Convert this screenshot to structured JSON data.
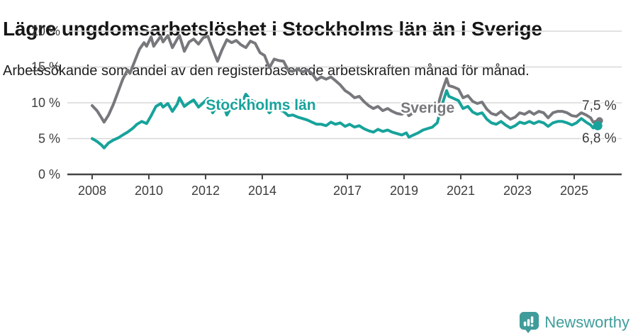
{
  "header": {
    "title": "Lägre ungdomsarbetslöshet i Stockholms län än i Sverige",
    "subtitle": "Arbetssökande som andel av den registerbaserade arbetskraften månad för månad."
  },
  "footer": {
    "brand": "Newsworthy",
    "logo_icon": "bar-chart-speech-bubble-icon"
  },
  "colors": {
    "stockholm_teal": "#17A39B",
    "sverige_gray": "#77787C",
    "axis": "#454545",
    "grid": "#d8d8d8",
    "tick_text": "#3d3d3d",
    "brand_teal": "#3F9D9B"
  },
  "chart_data": {
    "type": "line",
    "title": "Lägre ungdomsarbetslöshet i Stockholms län än i Sverige",
    "subtitle": "Arbetssökande som andel av den registerbaserade arbetskraften månad för månad.",
    "unit": "%",
    "xlim": [
      2007.8,
      2026.3
    ],
    "ylim": [
      0,
      21
    ],
    "grid": "horizontal",
    "legend_position": "inline-labels",
    "y_ticks": [
      0,
      5,
      10,
      15,
      20
    ],
    "y_tick_labels": [
      "0 %",
      "5 %",
      "10 %",
      "15 %",
      "20 %"
    ],
    "x_ticks": [
      2008,
      2010,
      2012,
      2014,
      2017,
      2019,
      2021,
      2023,
      2025
    ],
    "x_tick_labels": [
      "2008",
      "2010",
      "2012",
      "2014",
      "2017",
      "2019",
      "2021",
      "2023",
      "2025"
    ],
    "series": [
      {
        "name": "Sverige",
        "color": "#77787C",
        "end_label": "7,5 %",
        "end_value": 7.5,
        "label_anchor": [
          2019.83,
          9.3
        ],
        "points": [
          [
            2008.0,
            9.6
          ],
          [
            2008.17,
            8.9
          ],
          [
            2008.33,
            7.9
          ],
          [
            2008.42,
            7.3
          ],
          [
            2008.58,
            8.3
          ],
          [
            2008.75,
            9.8
          ],
          [
            2008.92,
            11.6
          ],
          [
            2009.08,
            13.3
          ],
          [
            2009.25,
            14.6
          ],
          [
            2009.33,
            14.1
          ],
          [
            2009.5,
            15.8
          ],
          [
            2009.67,
            17.5
          ],
          [
            2009.83,
            18.4
          ],
          [
            2009.92,
            17.9
          ],
          [
            2010.08,
            19.2
          ],
          [
            2010.17,
            17.9
          ],
          [
            2010.33,
            18.8
          ],
          [
            2010.42,
            19.3
          ],
          [
            2010.5,
            18.5
          ],
          [
            2010.67,
            19.4
          ],
          [
            2010.83,
            17.7
          ],
          [
            2011.0,
            18.9
          ],
          [
            2011.08,
            19.4
          ],
          [
            2011.25,
            17.2
          ],
          [
            2011.42,
            18.5
          ],
          [
            2011.58,
            18.9
          ],
          [
            2011.75,
            18.2
          ],
          [
            2011.92,
            19.1
          ],
          [
            2012.08,
            19.3
          ],
          [
            2012.25,
            17.5
          ],
          [
            2012.42,
            15.8
          ],
          [
            2012.58,
            17.4
          ],
          [
            2012.75,
            18.8
          ],
          [
            2012.92,
            18.4
          ],
          [
            2013.08,
            18.7
          ],
          [
            2013.25,
            18.1
          ],
          [
            2013.42,
            17.7
          ],
          [
            2013.58,
            18.6
          ],
          [
            2013.75,
            18.3
          ],
          [
            2013.92,
            17.0
          ],
          [
            2014.08,
            16.6
          ],
          [
            2014.25,
            14.9
          ],
          [
            2014.42,
            16.1
          ],
          [
            2014.58,
            15.9
          ],
          [
            2014.75,
            15.8
          ],
          [
            2014.92,
            14.5
          ],
          [
            2015.08,
            14.4
          ],
          [
            2015.25,
            14.7
          ],
          [
            2015.42,
            14.3
          ],
          [
            2015.58,
            14.6
          ],
          [
            2015.75,
            14.1
          ],
          [
            2015.92,
            13.2
          ],
          [
            2016.08,
            13.6
          ],
          [
            2016.25,
            13.3
          ],
          [
            2016.42,
            13.6
          ],
          [
            2016.58,
            13.1
          ],
          [
            2016.75,
            12.5
          ],
          [
            2016.92,
            11.7
          ],
          [
            2017.08,
            11.3
          ],
          [
            2017.25,
            10.7
          ],
          [
            2017.42,
            10.9
          ],
          [
            2017.58,
            10.2
          ],
          [
            2017.75,
            9.6
          ],
          [
            2017.92,
            9.2
          ],
          [
            2018.08,
            9.5
          ],
          [
            2018.25,
            8.9
          ],
          [
            2018.42,
            9.2
          ],
          [
            2018.58,
            8.8
          ],
          [
            2018.75,
            8.5
          ],
          [
            2018.92,
            8.4
          ],
          [
            2019.08,
            8.8
          ],
          [
            2019.17,
            8.2
          ],
          [
            2019.33,
            8.6
          ],
          [
            2019.5,
            9.0
          ],
          [
            2019.67,
            9.3
          ],
          [
            2019.83,
            8.8
          ],
          [
            2020.0,
            8.7
          ],
          [
            2020.17,
            9.3
          ],
          [
            2020.33,
            11.5
          ],
          [
            2020.5,
            13.4
          ],
          [
            2020.58,
            12.4
          ],
          [
            2020.75,
            12.2
          ],
          [
            2020.92,
            11.9
          ],
          [
            2021.08,
            10.7
          ],
          [
            2021.25,
            11.0
          ],
          [
            2021.42,
            10.2
          ],
          [
            2021.58,
            9.9
          ],
          [
            2021.75,
            10.1
          ],
          [
            2021.92,
            9.1
          ],
          [
            2022.08,
            8.5
          ],
          [
            2022.25,
            8.3
          ],
          [
            2022.42,
            8.8
          ],
          [
            2022.58,
            8.2
          ],
          [
            2022.75,
            7.7
          ],
          [
            2022.92,
            8.0
          ],
          [
            2023.08,
            8.6
          ],
          [
            2023.25,
            8.4
          ],
          [
            2023.42,
            8.8
          ],
          [
            2023.58,
            8.4
          ],
          [
            2023.75,
            8.8
          ],
          [
            2023.92,
            8.6
          ],
          [
            2024.08,
            7.9
          ],
          [
            2024.25,
            8.6
          ],
          [
            2024.42,
            8.8
          ],
          [
            2024.58,
            8.8
          ],
          [
            2024.75,
            8.6
          ],
          [
            2024.92,
            8.2
          ],
          [
            2025.08,
            8.1
          ],
          [
            2025.25,
            8.6
          ],
          [
            2025.42,
            8.3
          ],
          [
            2025.58,
            7.9
          ],
          [
            2025.67,
            7.3
          ],
          [
            2025.83,
            7.5
          ]
        ]
      },
      {
        "name": "Stockholms län",
        "color": "#17A39B",
        "end_label": "6,8 %",
        "end_value": 6.8,
        "label_anchor": [
          2013.95,
          9.7
        ],
        "points": [
          [
            2008.0,
            5.0
          ],
          [
            2008.17,
            4.6
          ],
          [
            2008.33,
            4.1
          ],
          [
            2008.42,
            3.7
          ],
          [
            2008.58,
            4.4
          ],
          [
            2008.75,
            4.8
          ],
          [
            2008.92,
            5.1
          ],
          [
            2009.08,
            5.5
          ],
          [
            2009.25,
            5.9
          ],
          [
            2009.42,
            6.4
          ],
          [
            2009.58,
            7.0
          ],
          [
            2009.75,
            7.4
          ],
          [
            2009.92,
            7.1
          ],
          [
            2010.08,
            8.2
          ],
          [
            2010.25,
            9.5
          ],
          [
            2010.42,
            9.9
          ],
          [
            2010.5,
            9.4
          ],
          [
            2010.67,
            9.9
          ],
          [
            2010.83,
            8.8
          ],
          [
            2011.0,
            9.8
          ],
          [
            2011.08,
            10.7
          ],
          [
            2011.25,
            9.5
          ],
          [
            2011.42,
            10.0
          ],
          [
            2011.58,
            10.4
          ],
          [
            2011.75,
            9.4
          ],
          [
            2011.92,
            10.0
          ],
          [
            2012.08,
            10.6
          ],
          [
            2012.25,
            8.6
          ],
          [
            2012.42,
            9.6
          ],
          [
            2012.58,
            10.3
          ],
          [
            2012.75,
            8.3
          ],
          [
            2012.92,
            9.5
          ],
          [
            2013.08,
            10.4
          ],
          [
            2013.25,
            9.8
          ],
          [
            2013.42,
            11.2
          ],
          [
            2013.58,
            10.4
          ],
          [
            2013.75,
            10.1
          ],
          [
            2013.92,
            9.3
          ],
          [
            2014.08,
            9.6
          ],
          [
            2014.25,
            8.6
          ],
          [
            2014.42,
            9.3
          ],
          [
            2014.58,
            9.0
          ],
          [
            2014.75,
            8.8
          ],
          [
            2014.92,
            8.2
          ],
          [
            2015.08,
            8.3
          ],
          [
            2015.25,
            8.0
          ],
          [
            2015.42,
            7.8
          ],
          [
            2015.58,
            7.6
          ],
          [
            2015.75,
            7.3
          ],
          [
            2015.92,
            7.0
          ],
          [
            2016.08,
            7.0
          ],
          [
            2016.25,
            6.8
          ],
          [
            2016.42,
            7.3
          ],
          [
            2016.58,
            7.0
          ],
          [
            2016.75,
            7.2
          ],
          [
            2016.92,
            6.7
          ],
          [
            2017.08,
            7.0
          ],
          [
            2017.25,
            6.6
          ],
          [
            2017.42,
            6.8
          ],
          [
            2017.58,
            6.4
          ],
          [
            2017.75,
            6.1
          ],
          [
            2017.92,
            5.9
          ],
          [
            2018.08,
            6.3
          ],
          [
            2018.25,
            6.0
          ],
          [
            2018.42,
            6.2
          ],
          [
            2018.58,
            5.9
          ],
          [
            2018.75,
            5.7
          ],
          [
            2018.92,
            5.5
          ],
          [
            2019.08,
            5.8
          ],
          [
            2019.17,
            5.2
          ],
          [
            2019.33,
            5.5
          ],
          [
            2019.5,
            5.8
          ],
          [
            2019.67,
            6.2
          ],
          [
            2019.83,
            6.4
          ],
          [
            2020.0,
            6.6
          ],
          [
            2020.17,
            7.2
          ],
          [
            2020.33,
            9.6
          ],
          [
            2020.5,
            11.7
          ],
          [
            2020.58,
            10.9
          ],
          [
            2020.75,
            10.6
          ],
          [
            2020.92,
            10.3
          ],
          [
            2021.08,
            9.2
          ],
          [
            2021.25,
            9.5
          ],
          [
            2021.42,
            8.7
          ],
          [
            2021.58,
            8.4
          ],
          [
            2021.75,
            8.6
          ],
          [
            2021.92,
            7.7
          ],
          [
            2022.08,
            7.2
          ],
          [
            2022.25,
            7.0
          ],
          [
            2022.42,
            7.4
          ],
          [
            2022.58,
            6.9
          ],
          [
            2022.75,
            6.5
          ],
          [
            2022.92,
            6.8
          ],
          [
            2023.08,
            7.3
          ],
          [
            2023.25,
            7.1
          ],
          [
            2023.42,
            7.4
          ],
          [
            2023.58,
            7.1
          ],
          [
            2023.75,
            7.4
          ],
          [
            2023.92,
            7.2
          ],
          [
            2024.08,
            6.7
          ],
          [
            2024.25,
            7.2
          ],
          [
            2024.42,
            7.4
          ],
          [
            2024.58,
            7.4
          ],
          [
            2024.75,
            7.2
          ],
          [
            2024.92,
            6.9
          ],
          [
            2025.08,
            7.2
          ],
          [
            2025.25,
            7.8
          ],
          [
            2025.42,
            7.3
          ],
          [
            2025.58,
            6.9
          ],
          [
            2025.67,
            6.5
          ],
          [
            2025.83,
            6.8
          ]
        ]
      }
    ]
  }
}
